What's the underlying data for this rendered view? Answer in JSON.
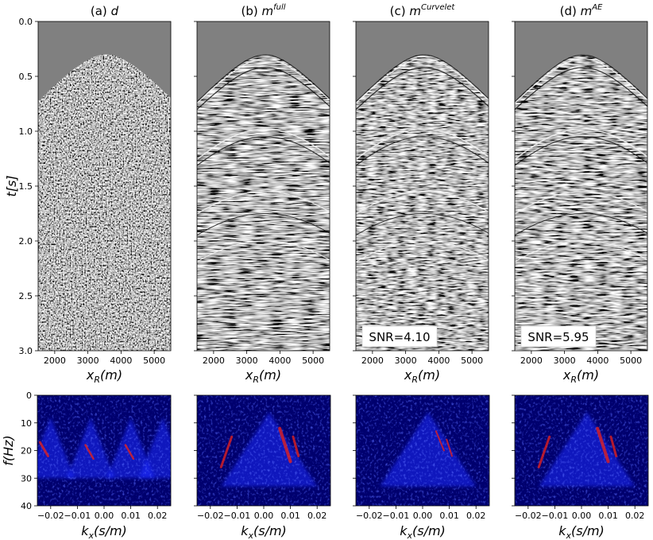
{
  "chart_data": [
    {
      "type": "heatmap",
      "panel": "a",
      "title_prefix": "(a) ",
      "title_sym": "d",
      "title_sup": "",
      "xlabel": "x",
      "xlabel_sub": "R",
      "xlabel_unit": "(m)",
      "ylabel": "t[s]",
      "xlim": [
        1500,
        5500
      ],
      "ylim": [
        3.0,
        0.0
      ],
      "xticks": [
        "2000",
        "3000",
        "4000",
        "5000"
      ],
      "yticks": [
        "0.0",
        "0.5",
        "1.0",
        "1.5",
        "2.0",
        "2.5",
        "3.0"
      ],
      "apex": {
        "x": 3550,
        "t": 0.3
      },
      "colormap": "gray",
      "annotation": ""
    },
    {
      "type": "heatmap",
      "panel": "b",
      "title_prefix": "(b) ",
      "title_sym": "m",
      "title_sup": "full",
      "xlabel": "x",
      "xlabel_sub": "R",
      "xlabel_unit": "(m)",
      "xlim": [
        1500,
        5500
      ],
      "ylim": [
        3.0,
        0.0
      ],
      "xticks": [
        "2000",
        "3000",
        "4000",
        "5000"
      ],
      "apex": {
        "x": 3550,
        "t": 0.3
      },
      "colormap": "gray",
      "annotation": ""
    },
    {
      "type": "heatmap",
      "panel": "c",
      "title_prefix": "(c) ",
      "title_sym": "m",
      "title_sup": "Curvelet",
      "xlabel": "x",
      "xlabel_sub": "R",
      "xlabel_unit": "(m)",
      "xlim": [
        1500,
        5500
      ],
      "ylim": [
        3.0,
        0.0
      ],
      "xticks": [
        "2000",
        "3000",
        "4000",
        "5000"
      ],
      "apex": {
        "x": 3550,
        "t": 0.3
      },
      "colormap": "gray",
      "annotation": "SNR=4.10"
    },
    {
      "type": "heatmap",
      "panel": "d",
      "title_prefix": "(d) ",
      "title_sym": "m",
      "title_sup": "AE",
      "xlabel": "x",
      "xlabel_sub": "R",
      "xlabel_unit": "(m)",
      "xlim": [
        1500,
        5500
      ],
      "ylim": [
        3.0,
        0.0
      ],
      "xticks": [
        "2000",
        "3000",
        "4000",
        "5000"
      ],
      "apex": {
        "x": 3550,
        "t": 0.3
      },
      "colormap": "gray",
      "annotation": "SNR=5.95"
    },
    {
      "type": "heatmap",
      "panel": "a-fk",
      "xlabel": "k",
      "xlabel_sub": "x",
      "xlabel_unit": "(s/m)",
      "ylabel": "f(Hz)",
      "xlim": [
        -0.025,
        0.025
      ],
      "ylim": [
        40,
        0
      ],
      "xticks": [
        "−0.02",
        "−0.01",
        "0.00",
        "0.01",
        "0.02"
      ],
      "yticks": [
        "0",
        "10",
        "20",
        "30",
        "40"
      ],
      "colormap": "seismic-blue",
      "pattern": "aliased"
    },
    {
      "type": "heatmap",
      "panel": "b-fk",
      "xlabel": "k",
      "xlabel_sub": "x",
      "xlabel_unit": "(s/m)",
      "xlim": [
        -0.025,
        0.025
      ],
      "ylim": [
        40,
        0
      ],
      "xticks": [
        "−0.02",
        "−0.01",
        "0.00",
        "0.01",
        "0.02"
      ],
      "colormap": "seismic-blue",
      "pattern": "full"
    },
    {
      "type": "heatmap",
      "panel": "c-fk",
      "xlabel": "k",
      "xlabel_sub": "x",
      "xlabel_unit": "(s/m)",
      "xlim": [
        -0.025,
        0.025
      ],
      "ylim": [
        40,
        0
      ],
      "xticks": [
        "−0.02",
        "−0.01",
        "0.00",
        "0.01",
        "0.02"
      ],
      "colormap": "seismic-blue",
      "pattern": "curvelet"
    },
    {
      "type": "heatmap",
      "panel": "d-fk",
      "xlabel": "k",
      "xlabel_sub": "x",
      "xlabel_unit": "(s/m)",
      "xlim": [
        -0.025,
        0.025
      ],
      "ylim": [
        40,
        0
      ],
      "xticks": [
        "−0.02",
        "−0.01",
        "0.00",
        "0.01",
        "0.02"
      ],
      "colormap": "seismic-blue",
      "pattern": "ae"
    }
  ]
}
